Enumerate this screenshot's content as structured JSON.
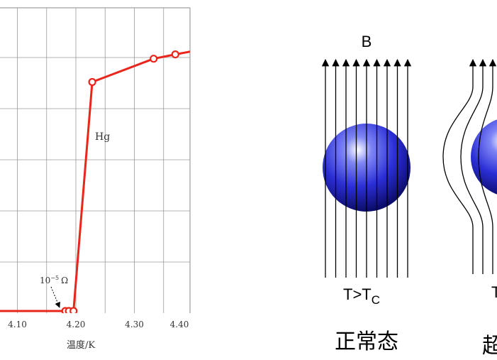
{
  "chart_data": {
    "type": "line",
    "title": "",
    "xlabel": "温度/K",
    "ylabel": "",
    "x_ticks": [
      "4.10",
      "4.20",
      "4.30",
      "4.40"
    ],
    "xlim": [
      4.045,
      4.4
    ],
    "ylim": [
      0,
      0.13
    ],
    "grid": true,
    "series": [
      {
        "name": "Hg",
        "color": "#e8261c",
        "x": [
          4.0,
          4.175,
          4.182,
          4.188,
          4.196,
          4.228,
          4.333,
          4.37,
          4.4
        ],
        "y": [
          0.0,
          0.0,
          0.0,
          0.0,
          0.0,
          0.111,
          0.1223,
          0.1244,
          0.126
        ]
      }
    ],
    "markers": {
      "x": [
        4.182,
        4.188,
        4.196,
        4.228,
        4.333,
        4.37
      ],
      "y": [
        0.0,
        0.0,
        0.0,
        0.111,
        0.1223,
        0.1244
      ]
    },
    "annotations": {
      "curve_label": "Hg",
      "resolution_label_base": "10",
      "resolution_label_exp": "−5",
      "resolution_label_unit": "Ω"
    }
  },
  "diagram": {
    "field_label": "B",
    "normal": {
      "condition_main": "T>T",
      "condition_sub": "C",
      "state_label": "正常态"
    },
    "super": {
      "state_label_partial": "超"
    },
    "sphere_color": "#2b2fd6"
  }
}
